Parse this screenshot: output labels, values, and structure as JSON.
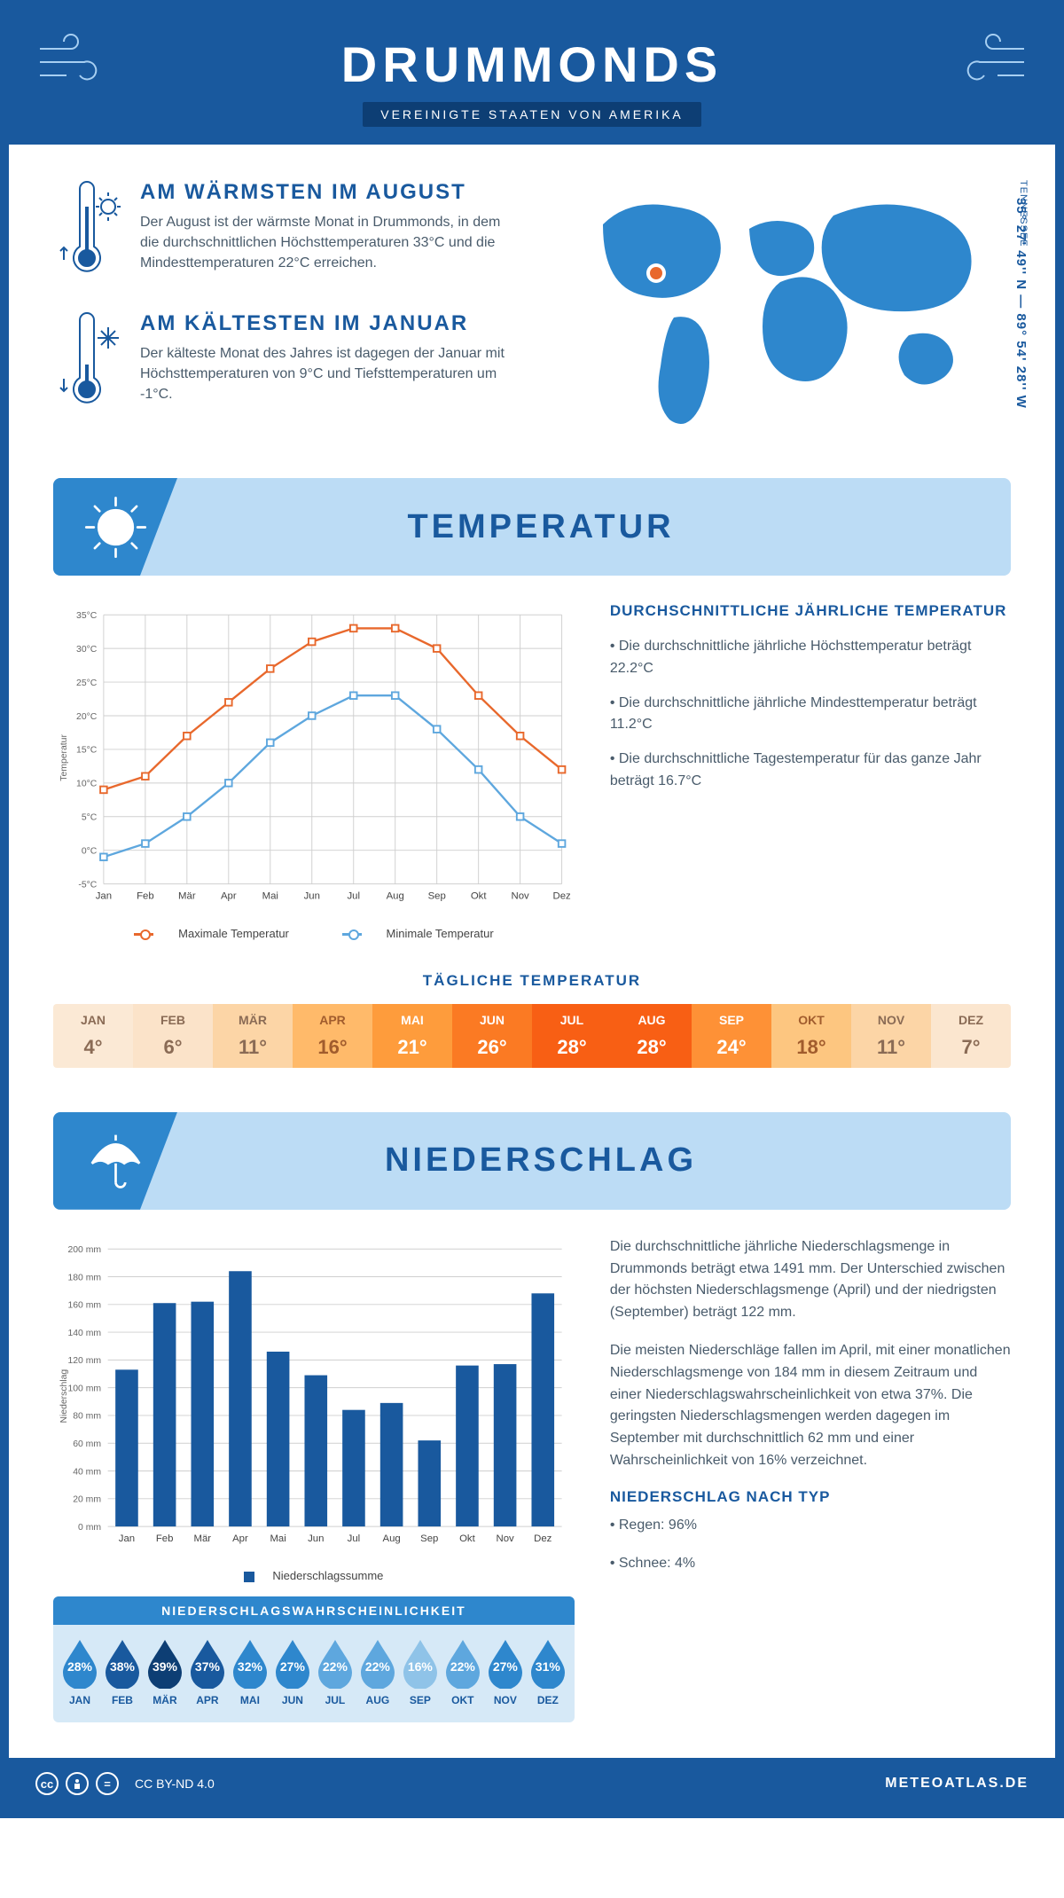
{
  "colors": {
    "primary": "#19599e",
    "primary_dark": "#0d3e74",
    "accent_blue": "#2e87cd",
    "light_blue": "#bcdcf5",
    "pale_blue": "#d6e9f7",
    "line_max": "#e8682c",
    "line_min": "#5ea7de",
    "text_body": "#495b6b",
    "grid": "#cfcfcf"
  },
  "header": {
    "title": "DRUMMONDS",
    "subtitle": "VEREINIGTE STAATEN VON AMERIKA"
  },
  "intro": {
    "warm": {
      "title": "AM WÄRMSTEN IM AUGUST",
      "text": "Der August ist der wärmste Monat in Drummonds, in dem die durchschnittlichen Höchsttemperaturen 33°C und die Mindesttemperaturen 22°C erreichen."
    },
    "cold": {
      "title": "AM KÄLTESTEN IM JANUAR",
      "text": "Der kälteste Monat des Jahres ist dagegen der Januar mit Höchsttemperaturen von 9°C und Tiefsttemperaturen um -1°C."
    },
    "region": "TENNESSEE",
    "coords": "35° 27' 49'' N — 89° 54' 28'' W"
  },
  "sections": {
    "temperature": "TEMPERATUR",
    "precipitation": "NIEDERSCHLAG"
  },
  "temp_chart": {
    "type": "line",
    "months": [
      "Jan",
      "Feb",
      "Mär",
      "Apr",
      "Mai",
      "Jun",
      "Jul",
      "Aug",
      "Sep",
      "Okt",
      "Nov",
      "Dez"
    ],
    "max_values": [
      9,
      11,
      17,
      22,
      27,
      31,
      33,
      33,
      30,
      23,
      17,
      12
    ],
    "min_values": [
      -1,
      1,
      5,
      10,
      16,
      20,
      23,
      23,
      18,
      12,
      5,
      1
    ],
    "ylim": [
      -5,
      35
    ],
    "ytick_step": 5,
    "y_label": "Temperatur",
    "y_unit": "°C",
    "legend_max": "Maximale Temperatur",
    "legend_min": "Minimale Temperatur"
  },
  "temp_stats": {
    "title": "DURCHSCHNITTLICHE JÄHRLICHE TEMPERATUR",
    "line1": "• Die durchschnittliche jährliche Höchsttemperatur beträgt 22.2°C",
    "line2": "• Die durchschnittliche jährliche Mindesttemperatur beträgt 11.2°C",
    "line3": "• Die durchschnittliche Tagestemperatur für das ganze Jahr beträgt 16.7°C"
  },
  "daily_temp": {
    "title": "TÄGLICHE TEMPERATUR",
    "months": [
      "JAN",
      "FEB",
      "MÄR",
      "APR",
      "MAI",
      "JUN",
      "JUL",
      "AUG",
      "SEP",
      "OKT",
      "NOV",
      "DEZ"
    ],
    "values": [
      "4°",
      "6°",
      "11°",
      "16°",
      "21°",
      "26°",
      "28°",
      "28°",
      "24°",
      "18°",
      "11°",
      "7°"
    ],
    "colors": [
      "#fbe9d5",
      "#fbe3c9",
      "#fcd5a6",
      "#ffba6a",
      "#fe9c3c",
      "#fb7a23",
      "#f85f14",
      "#f85f14",
      "#fe9136",
      "#fdc680",
      "#fcd5a6",
      "#fbe6cf"
    ],
    "text_colors": [
      "#8a6b55",
      "#8a6b55",
      "#8a6b55",
      "#a15c2d",
      "#ffffff",
      "#ffffff",
      "#ffffff",
      "#ffffff",
      "#ffffff",
      "#a15c2d",
      "#8a6b55",
      "#8a6b55"
    ]
  },
  "precip_chart": {
    "type": "bar",
    "months": [
      "Jan",
      "Feb",
      "Mär",
      "Apr",
      "Mai",
      "Jun",
      "Jul",
      "Aug",
      "Sep",
      "Okt",
      "Nov",
      "Dez"
    ],
    "values": [
      113,
      161,
      162,
      184,
      126,
      109,
      84,
      89,
      62,
      116,
      117,
      168
    ],
    "ylim": [
      0,
      200
    ],
    "ytick_step": 20,
    "y_label": "Niederschlag",
    "y_unit": " mm",
    "legend": "Niederschlagssumme",
    "bar_color": "#19599e"
  },
  "precip_text": {
    "p1": "Die durchschnittliche jährliche Niederschlagsmenge in Drummonds beträgt etwa 1491 mm. Der Unterschied zwischen der höchsten Niederschlagsmenge (April) und der niedrigsten (September) beträgt 122 mm.",
    "p2": "Die meisten Niederschläge fallen im April, mit einer monatlichen Niederschlagsmenge von 184 mm in diesem Zeitraum und einer Niederschlagswahrscheinlichkeit von etwa 37%. Die geringsten Niederschlagsmengen werden dagegen im September mit durchschnittlich 62 mm und einer Wahrscheinlichkeit von 16% verzeichnet.",
    "by_type_title": "NIEDERSCHLAG NACH TYP",
    "by_type_1": "• Regen: 96%",
    "by_type_2": "• Schnee: 4%"
  },
  "precip_prob": {
    "title": "NIEDERSCHLAGSWAHRSCHEINLICHKEIT",
    "months": [
      "JAN",
      "FEB",
      "MÄR",
      "APR",
      "MAI",
      "JUN",
      "JUL",
      "AUG",
      "SEP",
      "OKT",
      "NOV",
      "DEZ"
    ],
    "values": [
      "28%",
      "38%",
      "39%",
      "37%",
      "32%",
      "27%",
      "22%",
      "22%",
      "16%",
      "22%",
      "27%",
      "31%"
    ],
    "colors": [
      "#2e87cd",
      "#19599e",
      "#0d3e74",
      "#19599e",
      "#2e87cd",
      "#2e87cd",
      "#5ea7de",
      "#5ea7de",
      "#8fc3e8",
      "#5ea7de",
      "#2e87cd",
      "#2e87cd"
    ]
  },
  "footer": {
    "license": "CC BY-ND 4.0",
    "brand": "METEOATLAS.DE"
  }
}
